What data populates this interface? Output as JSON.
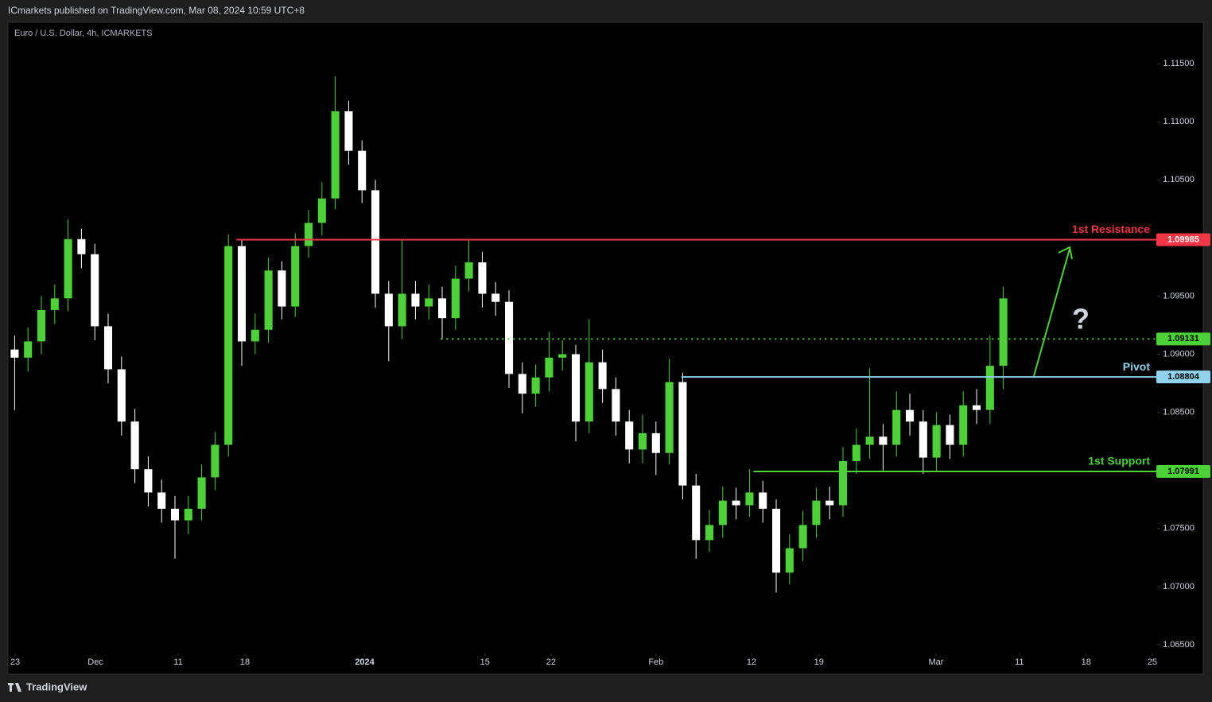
{
  "header": {
    "published": "ICmarkets published on TradingView.com, Mar 08, 2024 10:59 UTC+8"
  },
  "footer": {
    "brand": "TradingView"
  },
  "chart_data": {
    "type": "candlestick",
    "title": "Euro / U.S. Dollar, 4h, ICMARKETS",
    "up_color": "#4cd137",
    "down_color": "#ffffff",
    "x": [
      0.5,
      1.5,
      2.5,
      3.5,
      4.5,
      5.5,
      6.5,
      7.5,
      8.5,
      9.5,
      10.5,
      11.5,
      12.5,
      13.5,
      14.5,
      15.5,
      16.5,
      17.5,
      18.5,
      19.5,
      20.5,
      21.5,
      22.5,
      23.5,
      24.5,
      25.5,
      26.5,
      27.5,
      28.5,
      29.5,
      30.5,
      31.5,
      32.5,
      33.5,
      34.5,
      35.5,
      36.5,
      37.5,
      38.5,
      39.5,
      40.5,
      41.5,
      42.5,
      43.5,
      44.5,
      45.5,
      46.5,
      47.5,
      48.5,
      49.5,
      50.5,
      51.5,
      52.5,
      53.5,
      54.5,
      55.5,
      56.5,
      57.5,
      58.5,
      59.5,
      60.5,
      61.5,
      62.5,
      63.5,
      64.5,
      65.5,
      66.5,
      67.5,
      68.5,
      69.5,
      70.5,
      71.5,
      72.5,
      73.5,
      74.5
    ],
    "open": [
      1.0904,
      1.0897,
      1.0911,
      1.0938,
      1.0948,
      1.0999,
      1.0986,
      1.0924,
      1.0887,
      1.0842,
      1.0801,
      1.0781,
      1.0767,
      1.0757,
      1.0767,
      1.0794,
      1.0822,
      1.0993,
      1.0911,
      1.0921,
      1.0972,
      1.0941,
      1.0993,
      1.1013,
      1.1034,
      1.1109,
      1.1075,
      1.1041,
      1.0952,
      1.0924,
      1.0952,
      1.0941,
      1.0948,
      1.0931,
      1.0965,
      1.0979,
      1.0952,
      1.0945,
      1.0883,
      1.0866,
      1.088,
      1.0897,
      1.09,
      1.0842,
      1.0893,
      1.087,
      1.0842,
      1.0818,
      1.0832,
      1.0815,
      1.0876,
      1.0787,
      1.074,
      1.0753,
      1.0774,
      1.077,
      1.0781,
      1.0767,
      1.0712,
      1.0733,
      1.0753,
      1.0774,
      1.077,
      1.0808,
      1.0822,
      1.0829,
      1.0822,
      1.0852,
      1.0842,
      1.0811,
      1.0839,
      1.0822,
      1.0856,
      1.0852,
      1.089
    ],
    "high": [
      1.0916,
      1.0923,
      1.095,
      1.096,
      1.1016,
      1.1008,
      1.0995,
      1.0935,
      1.0898,
      1.0853,
      1.0812,
      1.0792,
      1.0778,
      1.0778,
      1.0805,
      1.0833,
      1.1003,
      1.0999,
      1.0935,
      1.0983,
      1.098,
      1.1004,
      1.1024,
      1.1048,
      1.1139,
      1.1118,
      1.1084,
      1.105,
      1.0963,
      1.0998,
      1.0963,
      1.096,
      1.0958,
      1.0976,
      1.0998,
      1.0988,
      1.0962,
      1.0955,
      1.0893,
      1.0891,
      1.0919,
      1.0912,
      1.0908,
      1.093,
      1.0904,
      1.088,
      1.0852,
      1.0848,
      1.0842,
      1.0896,
      1.0884,
      1.0797,
      1.0766,
      1.0786,
      1.0785,
      1.0801,
      1.0791,
      1.0775,
      1.0745,
      1.0765,
      1.0785,
      1.0786,
      1.082,
      1.0836,
      1.0888,
      1.084,
      1.0868,
      1.0866,
      1.0852,
      1.085,
      1.0848,
      1.0868,
      1.087,
      1.0916,
      1.0958
    ],
    "low": [
      1.0852,
      1.0885,
      1.09,
      1.0926,
      1.0937,
      1.0974,
      1.0912,
      1.0875,
      1.083,
      1.0789,
      1.0769,
      1.0755,
      1.0724,
      1.0745,
      1.0757,
      1.0783,
      1.0812,
      1.089,
      1.09,
      1.091,
      1.093,
      1.0932,
      1.0983,
      1.1002,
      1.1025,
      1.1063,
      1.103,
      1.094,
      1.0894,
      1.0913,
      1.093,
      1.093,
      1.0913,
      1.0921,
      1.0954,
      1.094,
      1.0933,
      1.0871,
      1.0849,
      1.0855,
      1.0868,
      1.0886,
      1.0825,
      1.0832,
      1.0858,
      1.083,
      1.0806,
      1.0806,
      1.0796,
      1.0805,
      1.0775,
      1.0724,
      1.073,
      1.0742,
      1.0758,
      1.076,
      1.0755,
      1.0695,
      1.0702,
      1.0722,
      1.0742,
      1.0758,
      1.076,
      1.0797,
      1.081,
      1.08,
      1.0812,
      1.083,
      1.0797,
      1.08,
      1.081,
      1.0812,
      1.084,
      1.084,
      1.087
    ],
    "close": [
      1.0897,
      1.0911,
      1.0938,
      1.0948,
      1.0999,
      1.0986,
      1.0924,
      1.0887,
      1.0842,
      1.0801,
      1.0781,
      1.0767,
      1.0757,
      1.0767,
      1.0794,
      1.0822,
      1.0993,
      1.0911,
      1.0921,
      1.0972,
      1.0941,
      1.0993,
      1.1013,
      1.1034,
      1.1109,
      1.1075,
      1.1041,
      1.0952,
      1.0924,
      1.0952,
      1.0941,
      1.0948,
      1.0931,
      1.0965,
      1.0979,
      1.0952,
      1.0945,
      1.0883,
      1.0866,
      1.088,
      1.0897,
      1.09,
      1.0842,
      1.0893,
      1.087,
      1.0842,
      1.0818,
      1.0832,
      1.0815,
      1.0876,
      1.0787,
      1.074,
      1.0753,
      1.0774,
      1.077,
      1.0781,
      1.0767,
      1.0712,
      1.0733,
      1.0753,
      1.0774,
      1.077,
      1.0808,
      1.0822,
      1.0829,
      1.0822,
      1.0852,
      1.0842,
      1.0811,
      1.0839,
      1.0822,
      1.0856,
      1.0852,
      1.089,
      1.0948
    ],
    "xlim": [
      0,
      86.01
    ],
    "xticks": [
      {
        "value": 0.54,
        "label": "23"
      },
      {
        "value": 6.55,
        "label": "Dec"
      },
      {
        "value": 12.74,
        "label": "11"
      },
      {
        "value": 17.74,
        "label": "18"
      },
      {
        "value": 26.7,
        "label": "2024"
      },
      {
        "value": 35.7,
        "label": "15"
      },
      {
        "value": 40.65,
        "label": "22"
      },
      {
        "value": 48.5,
        "label": "Feb"
      },
      {
        "value": 55.65,
        "label": "12"
      },
      {
        "value": 60.7,
        "label": "19"
      },
      {
        "value": 69.46,
        "label": "Mar"
      },
      {
        "value": 75.7,
        "label": "11"
      },
      {
        "value": 80.7,
        "label": "18"
      },
      {
        "value": 85.65,
        "label": "25"
      }
    ],
    "ylim": [
      1.06438,
      1.11856
    ],
    "yticks": [
      {
        "value": 1.065,
        "label": "1.06500"
      },
      {
        "value": 1.07,
        "label": "1.07000"
      },
      {
        "value": 1.075,
        "label": "1.07500"
      },
      {
        "value": 1.08,
        "label": "1.08000"
      },
      {
        "value": 1.085,
        "label": "1.08500"
      },
      {
        "value": 1.09,
        "label": "1.09000"
      },
      {
        "value": 1.095,
        "label": "1.09500"
      },
      {
        "value": 1.1,
        "label": "1.10000"
      },
      {
        "value": 1.105,
        "label": "1.10500"
      },
      {
        "value": 1.11,
        "label": "1.11000"
      },
      {
        "value": 1.115,
        "label": "1.11500"
      }
    ],
    "levels": [
      {
        "name": "1st Resistance",
        "value": 1.09985,
        "from": 17.1,
        "color": "#f23645",
        "style": "solid"
      },
      {
        "value": 1.09131,
        "from": 32.4,
        "color": "#4cd137",
        "style": "dotted"
      },
      {
        "name": "Pivot",
        "value": 1.08804,
        "from": 50.4,
        "color": "#8fd3ec",
        "style": "solid"
      },
      {
        "name": "1st Support",
        "value": 1.07991,
        "from": 55.8,
        "color": "#4cd137",
        "style": "solid"
      }
    ],
    "annotations": [
      "?"
    ]
  }
}
